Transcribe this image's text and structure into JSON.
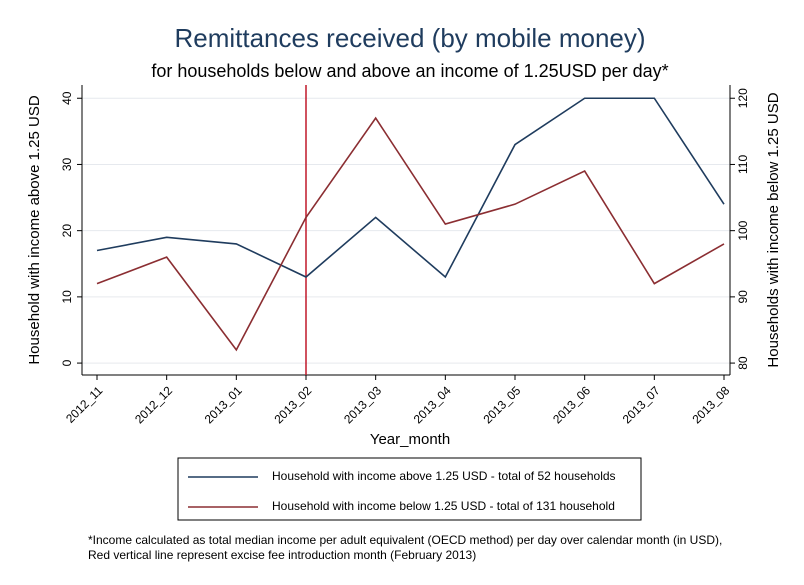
{
  "chart_data": {
    "type": "line",
    "title": "Remittances received (by mobile money)",
    "subtitle": "for households below and above an income of 1.25USD per day*",
    "x_label": "Year_month",
    "y_label": "Household with income above 1.25 USD",
    "y2_label": "Households with income below 1.25 USD",
    "categories": [
      "2012_11",
      "2012_12",
      "2013_01",
      "2013_02",
      "2013_03",
      "2013_04",
      "2013_05",
      "2013_06",
      "2013_07",
      "2013_08"
    ],
    "series": [
      {
        "name": "Household with income above 1.25 USD - total of 52 households",
        "color": "#1f3c5e",
        "values": [
          17,
          19,
          18,
          13,
          22,
          13,
          33,
          40,
          40,
          24
        ]
      },
      {
        "name": "Household with income below 1.25 USD - total of 131 household",
        "color": "#8b2e32",
        "axis": "y2",
        "values": [
          92,
          96,
          82,
          102,
          117,
          101,
          104,
          109,
          92,
          98
        ]
      }
    ],
    "ylim": [
      -1.8,
      42
    ],
    "yticks": [
      0,
      10,
      20,
      30,
      40
    ],
    "y2lim": [
      78.2,
      122
    ],
    "y2ticks": [
      80,
      90,
      100,
      110,
      120
    ],
    "grid": true,
    "vline": {
      "x": "2013_02",
      "color": "#c0182a"
    },
    "notes": [
      "*Income calculated as total median income per adult equivalent (OECD method) per day over calendar month (in USD),",
      "Red vertical line represent excise fee introduction month (February 2013)"
    ]
  }
}
